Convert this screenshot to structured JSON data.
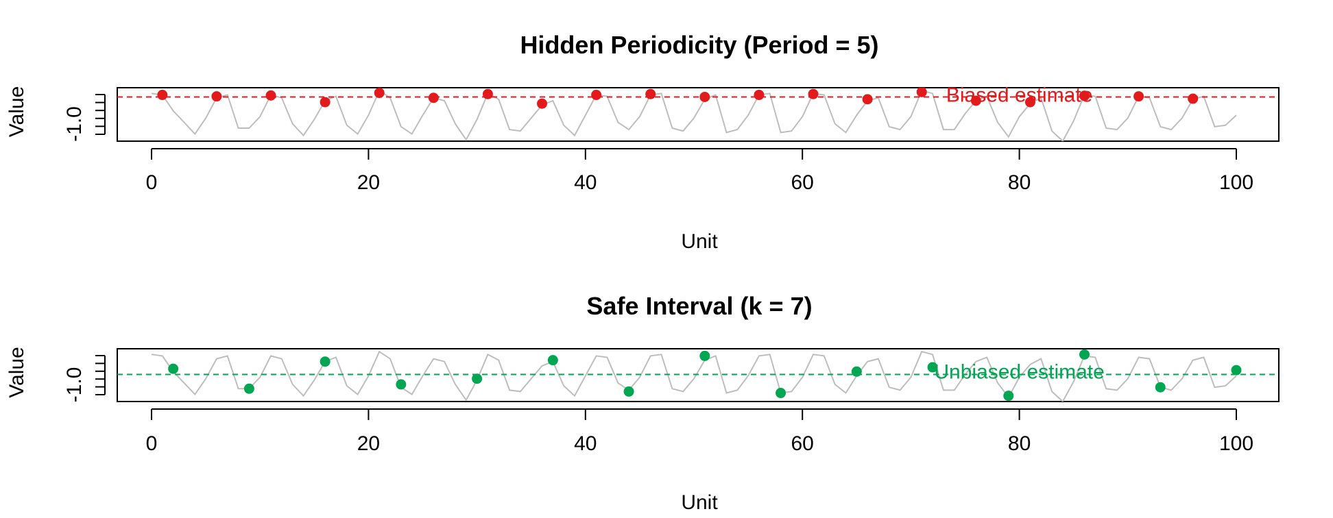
{
  "chart_data": [
    {
      "type": "scatter",
      "title": "Hidden Periodicity (Period = 5)",
      "xlabel": "Unit",
      "ylabel": "Value",
      "xlim": [
        0,
        100
      ],
      "x_ticks": [
        0,
        20,
        40,
        60,
        80,
        100
      ],
      "y_tick_labels": [
        "-1.0"
      ],
      "ylim": [
        -1.55,
        0.3
      ],
      "grid": false,
      "legend": "none",
      "colors": {
        "line": "#bdbdbd",
        "points": "#e31a1c",
        "reference": "#e31a1c"
      },
      "series": [
        {
          "kind": "line",
          "x": [
            0,
            1,
            2,
            3,
            4,
            5,
            6,
            7,
            8,
            9,
            10,
            11,
            12,
            13,
            14,
            15,
            16,
            17,
            18,
            19,
            20,
            21,
            22,
            23,
            24,
            25,
            26,
            27,
            28,
            29,
            30,
            31,
            32,
            33,
            34,
            35,
            36,
            37,
            38,
            39,
            40,
            41,
            42,
            43,
            44,
            45,
            46,
            47,
            48,
            49,
            50,
            51,
            52,
            53,
            54,
            55,
            56,
            57,
            58,
            59,
            60,
            61,
            62,
            63,
            64,
            65,
            66,
            67,
            68,
            69,
            70,
            71,
            72,
            73,
            74,
            75,
            76,
            77,
            78,
            79,
            80,
            81,
            82,
            83,
            84,
            85,
            86,
            87,
            88,
            89,
            90,
            91,
            92,
            93,
            94,
            95,
            96,
            97,
            98,
            99,
            100
          ],
          "values": [
            0.1,
            0.05,
            -0.5,
            -0.9,
            -1.3,
            -0.75,
            -0.05,
            0.05,
            -1.1,
            -1.1,
            -0.7,
            0.05,
            -0.05,
            -0.95,
            -1.35,
            -0.8,
            -0.15,
            0.0,
            -1.0,
            -1.3,
            -0.65,
            0.2,
            -0.05,
            -1.05,
            -1.3,
            -0.65,
            -0.05,
            -0.15,
            -0.95,
            -1.5,
            -0.8,
            0.1,
            -0.1,
            -1.15,
            -1.2,
            -0.75,
            -0.3,
            -0.15,
            -1.0,
            -1.35,
            -0.65,
            0.05,
            0.0,
            -0.9,
            -1.15,
            -0.7,
            0.05,
            0.1,
            -1.1,
            -1.2,
            -0.75,
            -0.1,
            0.05,
            -1.25,
            -1.15,
            -0.65,
            0.05,
            0.1,
            -1.25,
            -1.2,
            -0.7,
            0.1,
            0.05,
            -0.95,
            -1.25,
            -0.65,
            -0.15,
            -0.05,
            -1.05,
            -1.15,
            -0.7,
            0.2,
            0.1,
            -1.15,
            -1.15,
            -0.6,
            -0.15,
            0.0,
            -0.9,
            -1.4,
            -0.7,
            -0.25,
            -0.05,
            -1.2,
            -1.55,
            -0.85,
            0.05,
            0.0,
            -1.1,
            -1.15,
            -0.75,
            0.0,
            -0.05,
            -1.05,
            -1.15,
            -0.75,
            -0.1,
            0.0,
            -1.05,
            -1.0,
            -0.65
          ]
        },
        {
          "kind": "points",
          "x": [
            1,
            6,
            11,
            16,
            21,
            26,
            31,
            36,
            41,
            46,
            51,
            56,
            61,
            66,
            71,
            76,
            81,
            86,
            91,
            96
          ],
          "values": [
            0.05,
            0.0,
            0.03,
            -0.2,
            0.12,
            -0.05,
            0.08,
            -0.25,
            0.05,
            0.08,
            -0.02,
            0.05,
            0.08,
            -0.1,
            0.15,
            -0.15,
            -0.2,
            0.02,
            0.0,
            -0.08
          ]
        }
      ],
      "reference_line": {
        "y": -0.02,
        "style": "dashed"
      },
      "annotation": {
        "text": "Biased estimate",
        "x": 80,
        "y": 0.05
      }
    },
    {
      "type": "scatter",
      "title": "Safe Interval (k = 7)",
      "xlabel": "Unit",
      "ylabel": "Value",
      "xlim": [
        0,
        100
      ],
      "x_ticks": [
        0,
        20,
        40,
        60,
        80,
        100
      ],
      "y_tick_labels": [
        "-1.0"
      ],
      "ylim": [
        -1.55,
        0.3
      ],
      "grid": false,
      "legend": "none",
      "colors": {
        "line": "#bdbdbd",
        "points": "#00a651",
        "reference": "#00a651"
      },
      "series": [
        {
          "kind": "line",
          "x": [
            0,
            1,
            2,
            3,
            4,
            5,
            6,
            7,
            8,
            9,
            10,
            11,
            12,
            13,
            14,
            15,
            16,
            17,
            18,
            19,
            20,
            21,
            22,
            23,
            24,
            25,
            26,
            27,
            28,
            29,
            30,
            31,
            32,
            33,
            34,
            35,
            36,
            37,
            38,
            39,
            40,
            41,
            42,
            43,
            44,
            45,
            46,
            47,
            48,
            49,
            50,
            51,
            52,
            53,
            54,
            55,
            56,
            57,
            58,
            59,
            60,
            61,
            62,
            63,
            64,
            65,
            66,
            67,
            68,
            69,
            70,
            71,
            72,
            73,
            74,
            75,
            76,
            77,
            78,
            79,
            80,
            81,
            82,
            83,
            84,
            85,
            86,
            87,
            88,
            89,
            90,
            91,
            92,
            93,
            94,
            95,
            96,
            97,
            98,
            99,
            100
          ],
          "values": [
            0.1,
            0.05,
            -0.5,
            -0.9,
            -1.3,
            -0.75,
            -0.05,
            0.05,
            -1.1,
            -1.1,
            -0.7,
            0.05,
            -0.05,
            -0.95,
            -1.35,
            -0.8,
            -0.15,
            0.0,
            -1.0,
            -1.3,
            -0.65,
            0.2,
            -0.05,
            -1.05,
            -1.3,
            -0.65,
            -0.05,
            -0.15,
            -0.95,
            -1.5,
            -0.8,
            0.1,
            -0.1,
            -1.15,
            -1.2,
            -0.75,
            -0.3,
            -0.15,
            -1.0,
            -1.35,
            -0.65,
            0.05,
            0.0,
            -0.9,
            -1.15,
            -0.7,
            0.05,
            0.1,
            -1.1,
            -1.2,
            -0.75,
            -0.1,
            0.05,
            -1.25,
            -1.15,
            -0.65,
            0.05,
            0.1,
            -1.25,
            -1.2,
            -0.7,
            0.1,
            0.05,
            -0.95,
            -1.25,
            -0.65,
            -0.15,
            -0.05,
            -1.05,
            -1.15,
            -0.7,
            0.2,
            0.1,
            -1.15,
            -1.15,
            -0.6,
            -0.15,
            0.0,
            -0.9,
            -1.4,
            -0.7,
            -0.25,
            -0.05,
            -1.2,
            -1.55,
            -0.85,
            0.05,
            0.0,
            -1.1,
            -1.15,
            -0.75,
            0.0,
            -0.05,
            -1.05,
            -1.15,
            -0.75,
            -0.1,
            0.0,
            -1.05,
            -1.0,
            -0.65
          ]
        },
        {
          "kind": "points",
          "x": [
            2,
            9,
            16,
            23,
            30,
            37,
            44,
            51,
            58,
            65,
            72,
            79,
            86,
            93,
            100
          ],
          "values": [
            -0.4,
            -1.1,
            -0.15,
            -0.95,
            -0.75,
            -0.1,
            -1.2,
            0.05,
            -1.25,
            -0.5,
            -0.35,
            -1.35,
            0.1,
            -1.05,
            -0.45
          ]
        }
      ],
      "reference_line": {
        "y": -0.6,
        "style": "dashed"
      },
      "annotation": {
        "text": "Unbiased estimate",
        "x": 80,
        "y": -0.5
      }
    }
  ]
}
